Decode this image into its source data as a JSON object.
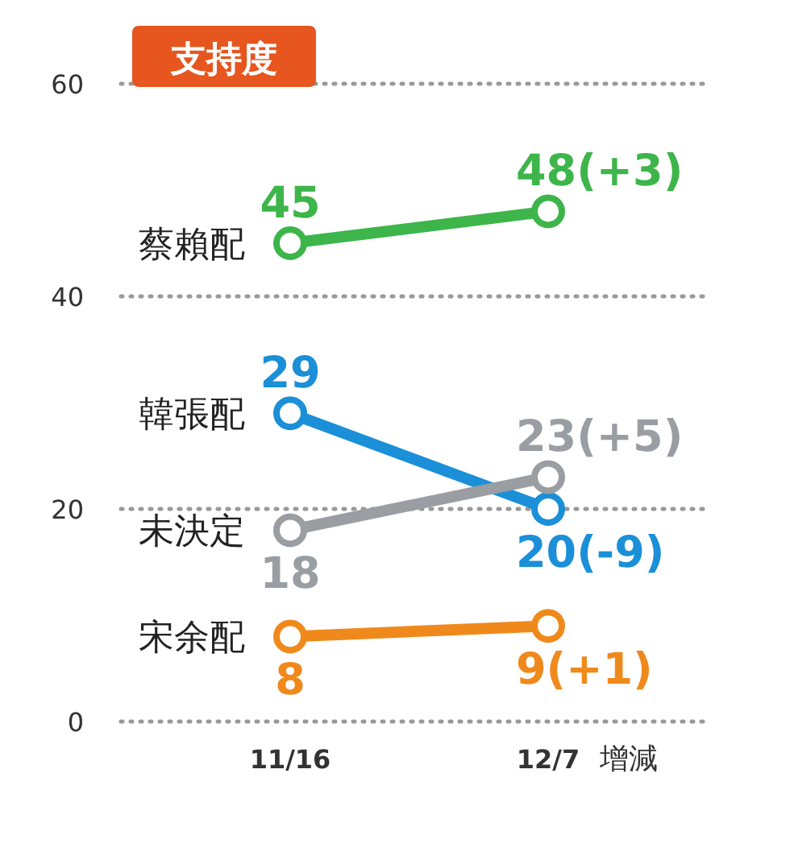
{
  "chart_data": {
    "type": "line",
    "title": "支持度",
    "xlabel": "增減",
    "categories": [
      "11/16",
      "12/7"
    ],
    "ylim": [
      0,
      60
    ],
    "yticks": [
      0,
      20,
      40,
      60
    ],
    "grid": "y",
    "marker": "circle",
    "line_style": "solid",
    "series": [
      {
        "name": "蔡賴配",
        "color": "#3db54a",
        "values": [
          45,
          48
        ],
        "value_labels": [
          "45",
          "48(+3)"
        ]
      },
      {
        "name": "韓張配",
        "color": "#1b8fd8",
        "values": [
          29,
          20
        ],
        "value_labels": [
          "29",
          "20(-9)"
        ]
      },
      {
        "name": "未決定",
        "color": "#9a9ea3",
        "values": [
          18,
          23
        ],
        "value_labels": [
          "18",
          "23(+5)"
        ]
      },
      {
        "name": "宋余配",
        "color": "#f0891c",
        "values": [
          8,
          9
        ],
        "value_labels": [
          "8",
          "9(+1)"
        ]
      }
    ]
  }
}
